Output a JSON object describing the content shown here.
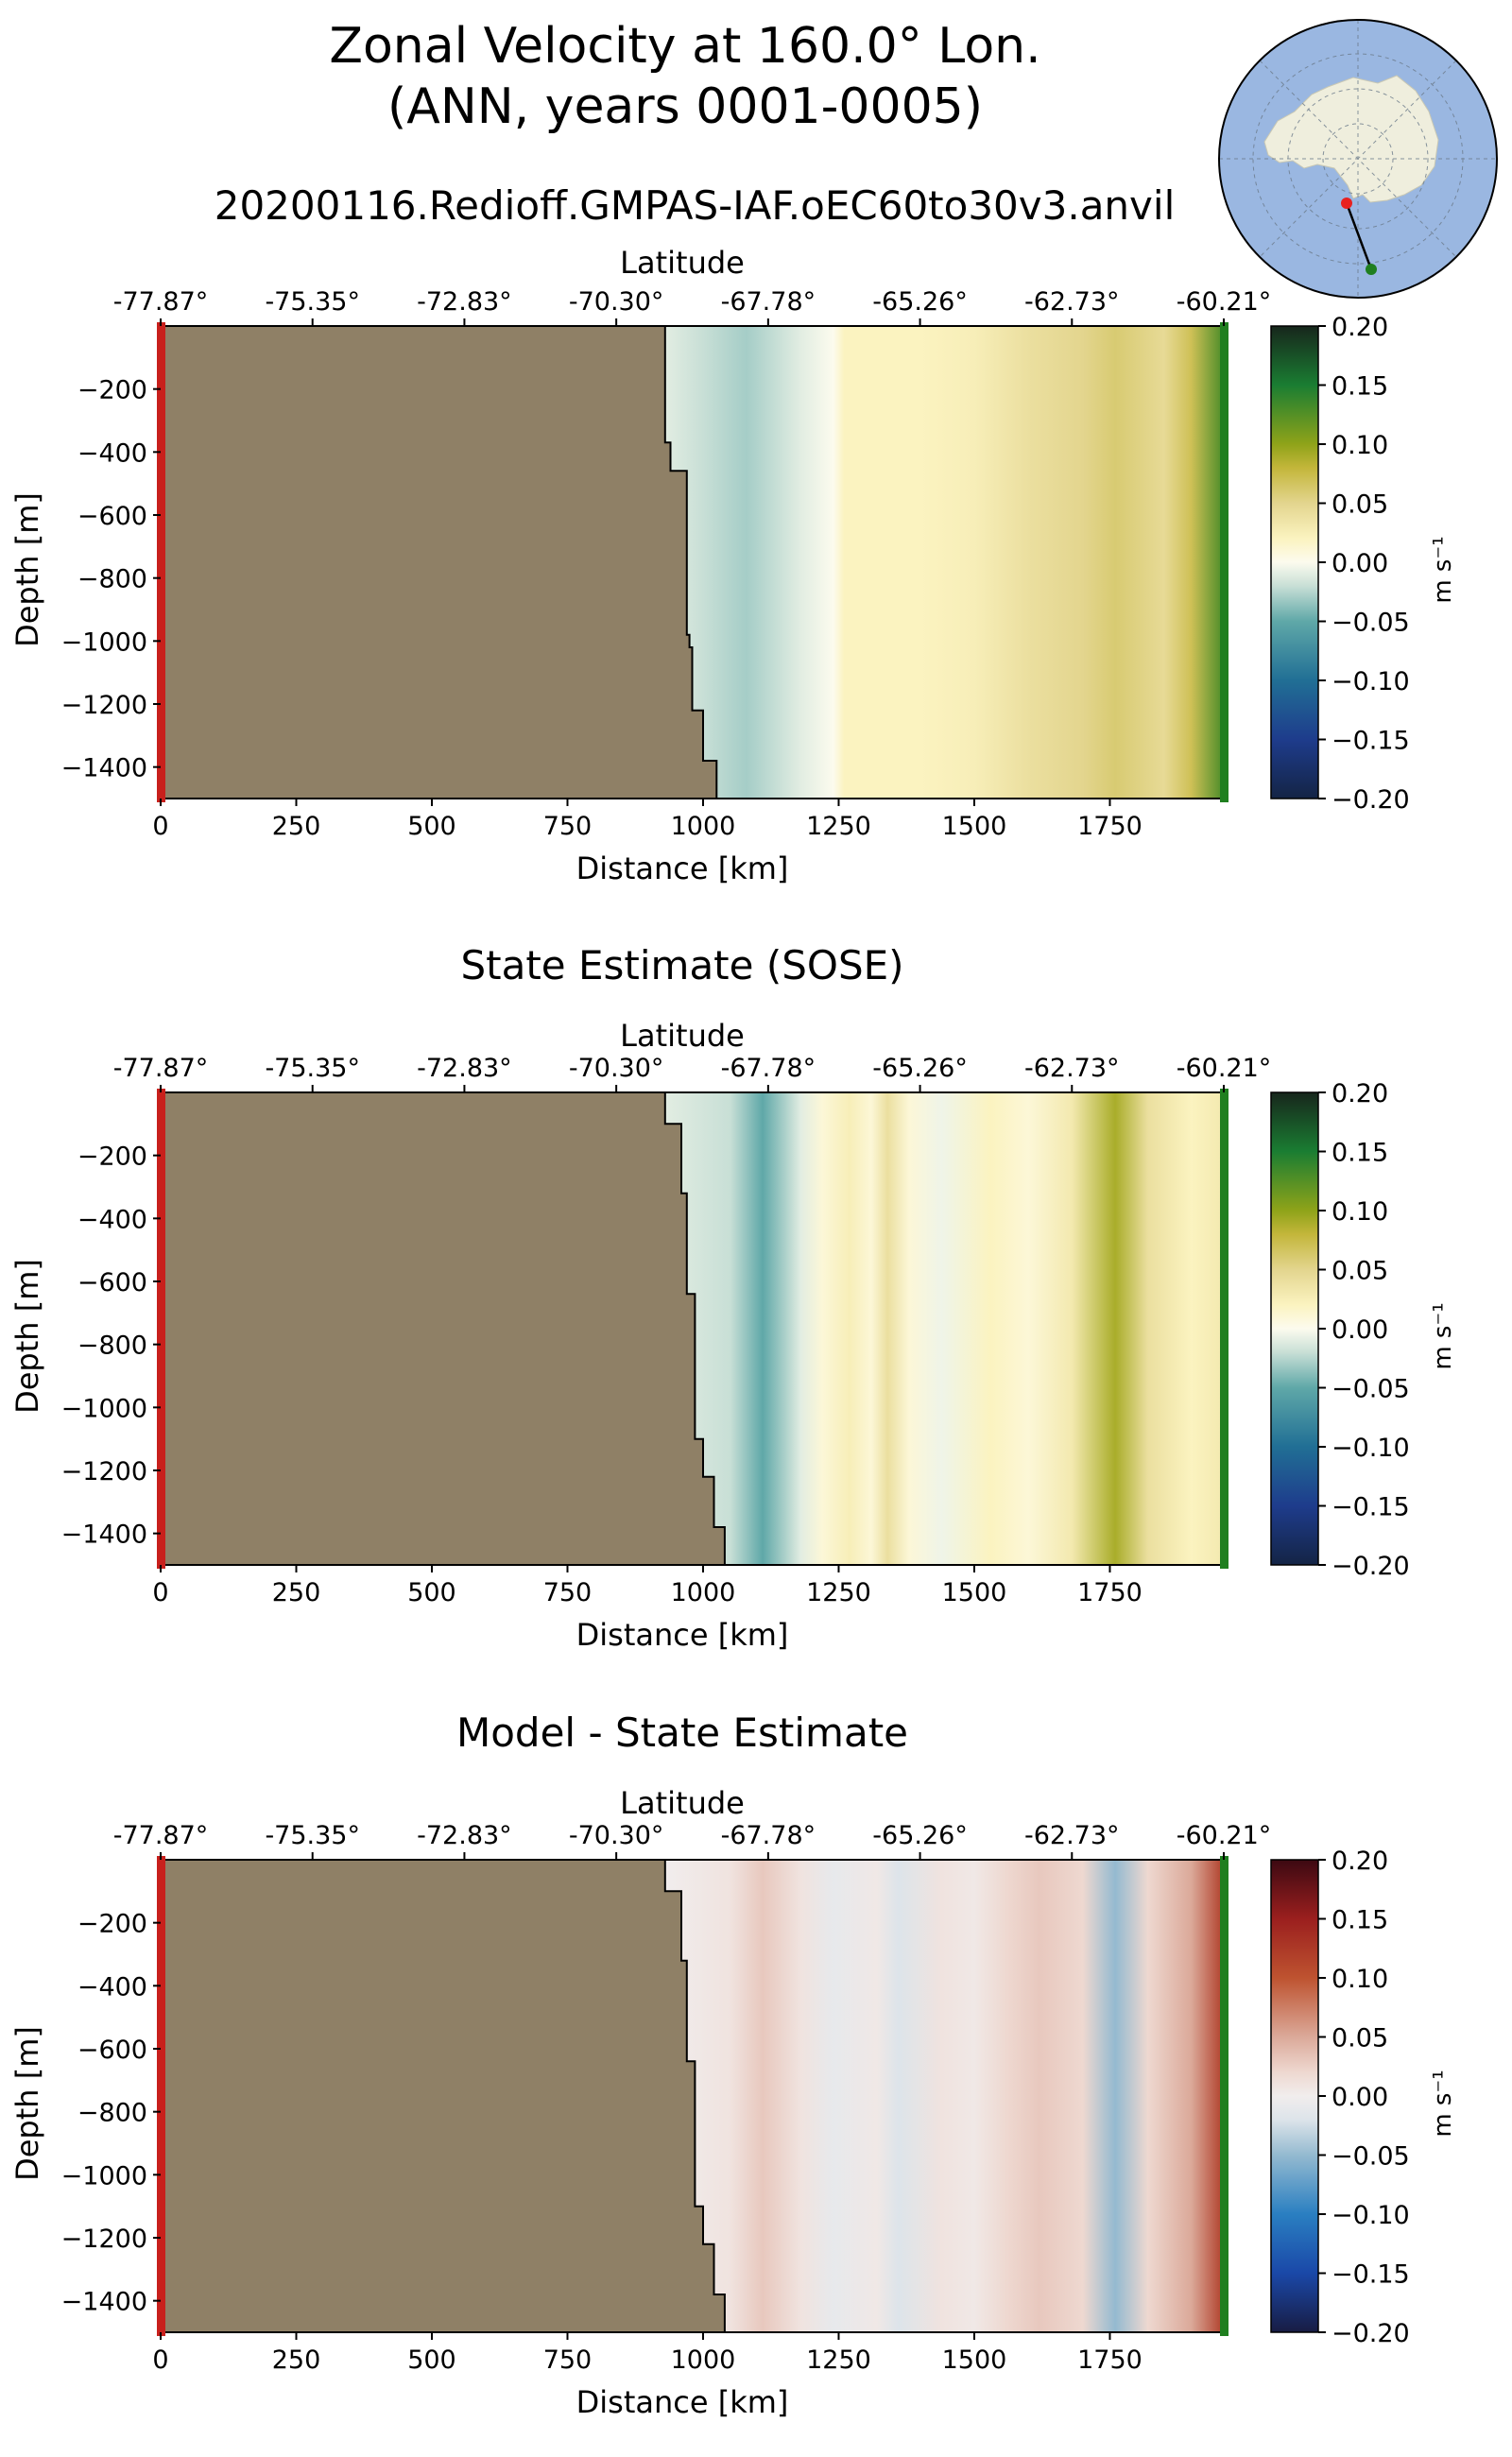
{
  "figure": {
    "title_line1": "Zonal Velocity at 160.0° Lon.",
    "title_line2": "(ANN, years 0001-0005)",
    "subtitle": "20200116.Redioff.GMPAS-IAF.oEC60to30v3.anvil"
  },
  "inset_map": {
    "description_icon": "antarctica-transect-map-icon",
    "ocean_color": "#9ab7e1",
    "land_color": "#efeedd",
    "start_marker_color": "#e8211f",
    "end_marker_color": "#1f7f1f"
  },
  "chart_data": [
    {
      "type": "heatmap",
      "id": "model",
      "title": "",
      "xlabel": "Distance [km]",
      "ylabel": "Depth [m]",
      "top_axis_label": "Latitude",
      "xlim": [
        0,
        1960
      ],
      "ylim": [
        -1500,
        0
      ],
      "x_ticks": [
        0,
        250,
        500,
        750,
        1000,
        1250,
        1500,
        1750
      ],
      "x_tick_labels": [
        "0",
        "250",
        "500",
        "750",
        "1000",
        "1250",
        "1500",
        "1750"
      ],
      "y_ticks": [
        -200,
        -400,
        -600,
        -800,
        -1000,
        -1200,
        -1400
      ],
      "y_tick_labels": [
        "−200",
        "−400",
        "−600",
        "−800",
        "−1000",
        "−1200",
        "−1400"
      ],
      "lat_ticks_km": [
        0,
        280,
        560,
        840,
        1120,
        1400,
        1680,
        1960
      ],
      "lat_tick_labels": [
        "-77.87°",
        "-75.35°",
        "-72.83°",
        "-70.30°",
        "-67.78°",
        "-65.26°",
        "-62.73°",
        "-60.21°"
      ],
      "land_boundary": [
        [
          0,
          0
        ],
        [
          930,
          0
        ],
        [
          930,
          -370
        ],
        [
          940,
          -370
        ],
        [
          940,
          -460
        ],
        [
          970,
          -460
        ],
        [
          970,
          -980
        ],
        [
          975,
          -980
        ],
        [
          975,
          -1020
        ],
        [
          980,
          -1020
        ],
        [
          980,
          -1220
        ],
        [
          1000,
          -1220
        ],
        [
          1000,
          -1380
        ],
        [
          1025,
          -1380
        ],
        [
          1025,
          -1500
        ],
        [
          0,
          -1500
        ]
      ],
      "colorbar": {
        "cmap": "delta",
        "vmin": -0.2,
        "vmax": 0.2,
        "ticks": [
          "0.20",
          "0.15",
          "0.10",
          "0.05",
          "0.00",
          "−0.05",
          "−0.10",
          "−0.15",
          "−0.20"
        ],
        "units": "m s⁻¹"
      },
      "profile_x": [
        930,
        1000,
        1080,
        1180,
        1240,
        1260,
        1400,
        1500,
        1600,
        1700,
        1760,
        1850,
        1900,
        1960
      ],
      "profile_v": [
        -0.01,
        -0.02,
        -0.03,
        -0.01,
        0.0,
        0.02,
        0.02,
        0.025,
        0.04,
        0.05,
        0.06,
        0.045,
        0.07,
        0.13
      ]
    },
    {
      "type": "heatmap",
      "id": "sose",
      "title": "State Estimate (SOSE)",
      "xlabel": "Distance [km]",
      "ylabel": "Depth [m]",
      "top_axis_label": "Latitude",
      "xlim": [
        0,
        1960
      ],
      "ylim": [
        -1500,
        0
      ],
      "x_ticks": [
        0,
        250,
        500,
        750,
        1000,
        1250,
        1500,
        1750
      ],
      "x_tick_labels": [
        "0",
        "250",
        "500",
        "750",
        "1000",
        "1250",
        "1500",
        "1750"
      ],
      "y_ticks": [
        -200,
        -400,
        -600,
        -800,
        -1000,
        -1200,
        -1400
      ],
      "y_tick_labels": [
        "−200",
        "−400",
        "−600",
        "−800",
        "−1000",
        "−1200",
        "−1400"
      ],
      "lat_ticks_km": [
        0,
        280,
        560,
        840,
        1120,
        1400,
        1680,
        1960
      ],
      "lat_tick_labels": [
        "-77.87°",
        "-75.35°",
        "-72.83°",
        "-70.30°",
        "-67.78°",
        "-65.26°",
        "-62.73°",
        "-60.21°"
      ],
      "land_boundary": [
        [
          0,
          0
        ],
        [
          930,
          0
        ],
        [
          930,
          -100
        ],
        [
          960,
          -100
        ],
        [
          960,
          -320
        ],
        [
          970,
          -320
        ],
        [
          970,
          -640
        ],
        [
          985,
          -640
        ],
        [
          985,
          -1100
        ],
        [
          1000,
          -1100
        ],
        [
          1000,
          -1220
        ],
        [
          1020,
          -1220
        ],
        [
          1020,
          -1380
        ],
        [
          1040,
          -1380
        ],
        [
          1040,
          -1500
        ],
        [
          0,
          -1500
        ]
      ],
      "colorbar": {
        "cmap": "delta",
        "vmin": -0.2,
        "vmax": 0.2,
        "ticks": [
          "0.20",
          "0.15",
          "0.10",
          "0.05",
          "0.00",
          "−0.05",
          "−0.10",
          "−0.15",
          "−0.20"
        ],
        "units": "m s⁻¹"
      },
      "profile_x": [
        930,
        1050,
        1110,
        1180,
        1220,
        1270,
        1310,
        1340,
        1380,
        1440,
        1530,
        1600,
        1680,
        1760,
        1820,
        1900,
        1960
      ],
      "profile_v": [
        -0.01,
        -0.02,
        -0.05,
        -0.01,
        0.01,
        0.025,
        0.01,
        0.04,
        0.01,
        -0.005,
        0.02,
        0.01,
        0.03,
        0.09,
        0.04,
        0.02,
        0.03
      ]
    },
    {
      "type": "heatmap",
      "id": "bias",
      "title": "Model - State Estimate",
      "xlabel": "Distance [km]",
      "ylabel": "Depth [m]",
      "top_axis_label": "Latitude",
      "xlim": [
        0,
        1960
      ],
      "ylim": [
        -1500,
        0
      ],
      "x_ticks": [
        0,
        250,
        500,
        750,
        1000,
        1250,
        1500,
        1750
      ],
      "x_tick_labels": [
        "0",
        "250",
        "500",
        "750",
        "1000",
        "1250",
        "1500",
        "1750"
      ],
      "y_ticks": [
        -200,
        -400,
        -600,
        -800,
        -1000,
        -1200,
        -1400
      ],
      "y_tick_labels": [
        "−200",
        "−400",
        "−600",
        "−800",
        "−1000",
        "−1200",
        "−1400"
      ],
      "lat_ticks_km": [
        0,
        280,
        560,
        840,
        1120,
        1400,
        1680,
        1960
      ],
      "lat_tick_labels": [
        "-77.87°",
        "-75.35°",
        "-72.83°",
        "-70.30°",
        "-67.78°",
        "-65.26°",
        "-62.73°",
        "-60.21°"
      ],
      "land_boundary": [
        [
          0,
          0
        ],
        [
          930,
          0
        ],
        [
          930,
          -100
        ],
        [
          960,
          -100
        ],
        [
          960,
          -320
        ],
        [
          970,
          -320
        ],
        [
          970,
          -640
        ],
        [
          985,
          -640
        ],
        [
          985,
          -1100
        ],
        [
          1000,
          -1100
        ],
        [
          1000,
          -1220
        ],
        [
          1020,
          -1220
        ],
        [
          1020,
          -1380
        ],
        [
          1040,
          -1380
        ],
        [
          1040,
          -1500
        ],
        [
          0,
          -1500
        ]
      ],
      "colorbar": {
        "cmap": "balance",
        "vmin": -0.2,
        "vmax": 0.2,
        "ticks": [
          "0.20",
          "0.15",
          "0.10",
          "0.05",
          "0.00",
          "−0.05",
          "−0.10",
          "−0.15",
          "−0.20"
        ],
        "units": "m s⁻¹"
      },
      "profile_x": [
        930,
        1050,
        1110,
        1180,
        1240,
        1320,
        1360,
        1440,
        1500,
        1560,
        1620,
        1700,
        1760,
        1820,
        1900,
        1960
      ],
      "profile_v": [
        0.0,
        0.01,
        0.03,
        0.01,
        -0.01,
        0.005,
        -0.02,
        0.01,
        0.005,
        0.02,
        0.03,
        0.02,
        -0.05,
        0.02,
        0.05,
        0.12
      ]
    }
  ]
}
